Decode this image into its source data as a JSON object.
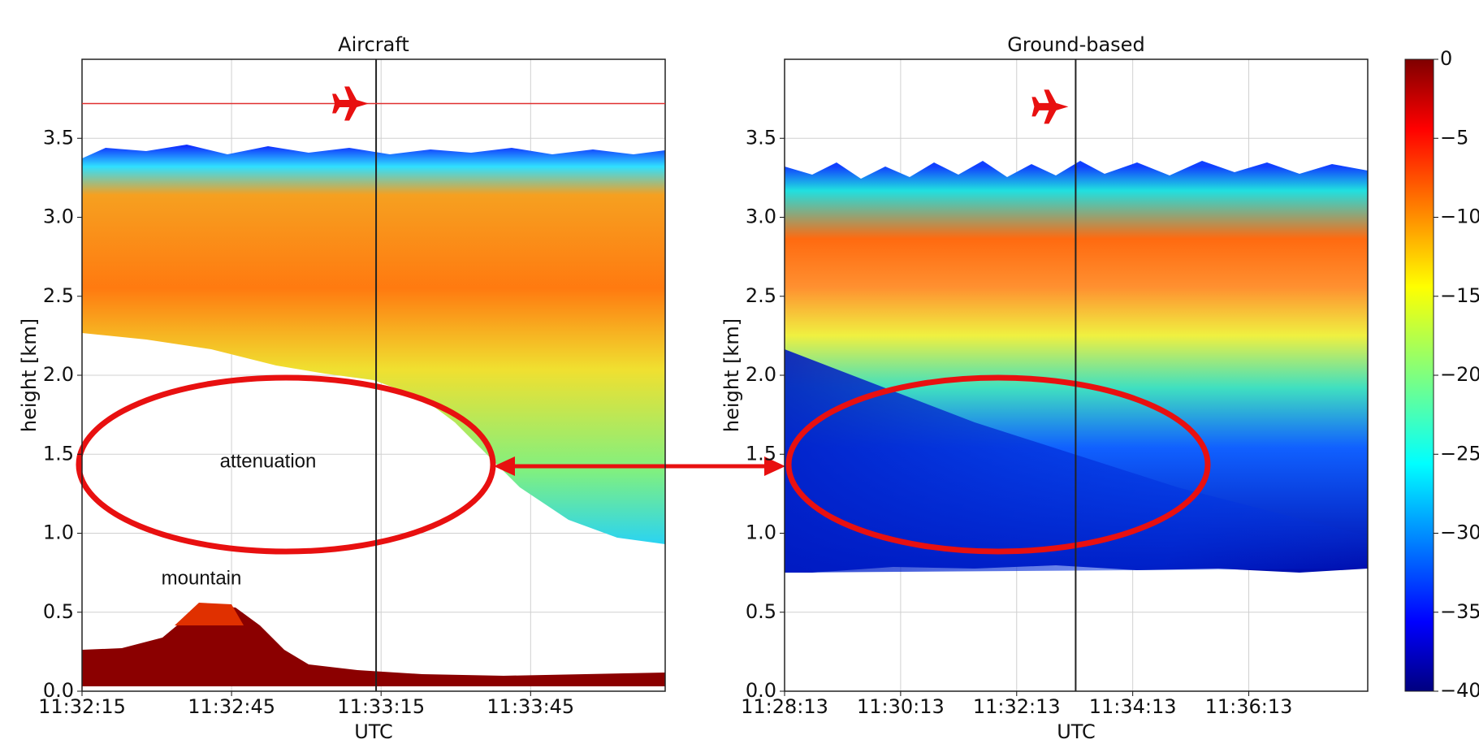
{
  "chart_data": [
    {
      "type": "heatmap",
      "title": "Aircraft",
      "xlabel": "UTC",
      "ylabel": "height [km]",
      "xlim": [
        "11:32:15",
        "11:34:12"
      ],
      "xticks": [
        "11:32:15",
        "11:32:45",
        "11:33:15",
        "11:33:45"
      ],
      "ylim": [
        0,
        4.0
      ],
      "yticks": [
        {
          "value": 0,
          "label": "0.0"
        },
        0.5,
        {
          "value": 1,
          "label": "1.0"
        },
        1.5,
        {
          "value": 2,
          "label": "2.0"
        },
        2.5,
        {
          "value": 3,
          "label": "3.0"
        },
        3.5
      ],
      "grid": true,
      "aircraft_time": "11:33:14",
      "aircraft_height": 3.72,
      "flight_track": true,
      "annotations": [
        "attenuation",
        "mountain"
      ]
    },
    {
      "type": "heatmap",
      "title": "Ground-based",
      "xlabel": "UTC",
      "ylabel": "height [km]",
      "xlim": [
        "11:28:13",
        "11:38:16"
      ],
      "xticks": [
        "11:28:13",
        "11:30:13",
        "11:32:13",
        "11:34:13",
        "11:36:13"
      ],
      "ylim": [
        0,
        4.0
      ],
      "yticks": [
        {
          "value": 0,
          "label": "0.0"
        },
        0.5,
        {
          "value": 1,
          "label": "1.0"
        },
        1.5,
        {
          "value": 2,
          "label": "2.0"
        },
        2.5,
        {
          "value": 3,
          "label": "3.0"
        },
        3.5
      ],
      "grid": true,
      "aircraft_time": "11:33:14",
      "aircraft_height": 3.7,
      "flight_track": false,
      "colorbar": {
        "colormap": "jet",
        "lim": [
          -40,
          0
        ],
        "ticks": [
          0,
          {
            "value": -5,
            "label": "−5"
          },
          {
            "value": -10,
            "label": "−10"
          },
          {
            "value": -15,
            "label": "−15"
          },
          {
            "value": -20,
            "label": "−20"
          },
          {
            "value": -25,
            "label": "−25"
          },
          {
            "value": -30,
            "label": "−30"
          },
          {
            "value": -35,
            "label": "−35"
          },
          {
            "value": -40,
            "label": "−40"
          }
        ]
      }
    }
  ]
}
